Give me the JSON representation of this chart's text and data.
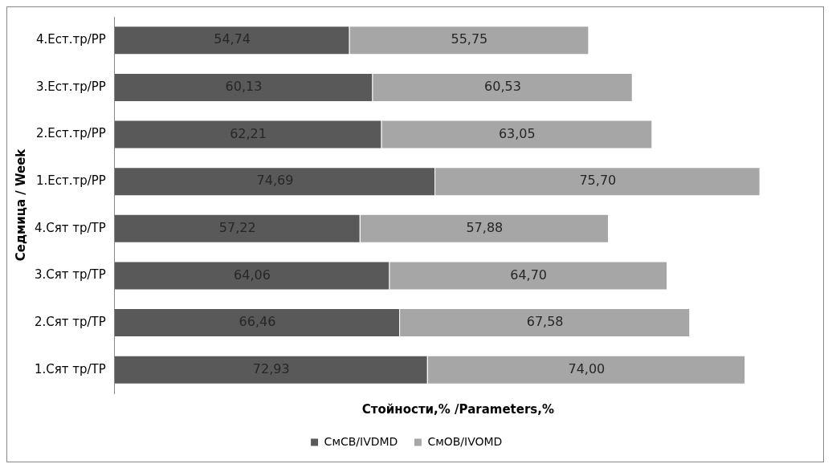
{
  "chart_data": {
    "type": "bar",
    "orientation": "horizontal",
    "stacked": true,
    "xlabel": "Стойности,% /Parameters,%",
    "ylabel": "Седмица / Week",
    "categories": [
      "4.Ест.тр/РР",
      "3.Ест.тр/РР",
      "2.Ест.тр/РР",
      "1.Ест.тр/РР",
      "4.Сят тр/ТР",
      "3.Сят тр/ТР",
      "2.Сят тр/ТР",
      "1.Сят тр/ТР"
    ],
    "series": [
      {
        "name": "СмСВ/IVDMD",
        "color": "#595959",
        "values": [
          54.74,
          60.13,
          62.21,
          74.69,
          57.22,
          64.06,
          66.46,
          72.93
        ],
        "value_labels": [
          "54,74",
          "60,13",
          "62,21",
          "74,69",
          "57,22",
          "64,06",
          "66,46",
          "72,93"
        ]
      },
      {
        "name": "СмОВ/IVOMD",
        "color": "#a6a6a6",
        "values": [
          55.75,
          60.53,
          63.05,
          75.7,
          57.88,
          64.7,
          67.58,
          74.0
        ],
        "value_labels": [
          "55,75",
          "60,53",
          "63,05",
          "75,70",
          "57,88",
          "64,70",
          "67,58",
          "74,00"
        ]
      }
    ],
    "grid": false,
    "legend": "bottom",
    "tick_labels": "y"
  }
}
